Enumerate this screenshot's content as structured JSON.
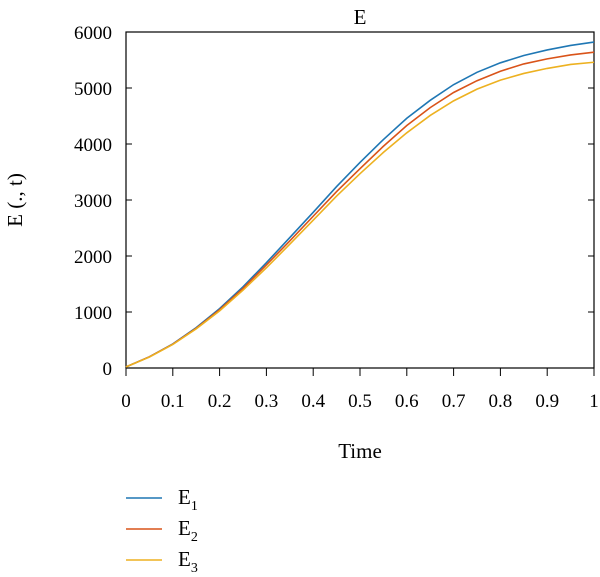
{
  "chart_data": {
    "type": "line",
    "title": "E",
    "xlabel": "Time",
    "ylabel": "E (., t)",
    "xlim": [
      0,
      1
    ],
    "ylim": [
      0,
      6000
    ],
    "x_ticks": [
      "0",
      "0.1",
      "0.2",
      "0.3",
      "0.4",
      "0.5",
      "0.6",
      "0.7",
      "0.8",
      "0.9",
      "1"
    ],
    "y_ticks": [
      "0",
      "1000",
      "2000",
      "3000",
      "4000",
      "5000",
      "6000"
    ],
    "grid": false,
    "legend_position": "bottom-left",
    "x": [
      0,
      0.05,
      0.1,
      0.15,
      0.2,
      0.25,
      0.3,
      0.35,
      0.4,
      0.45,
      0.5,
      0.55,
      0.6,
      0.65,
      0.7,
      0.75,
      0.8,
      0.85,
      0.9,
      0.95,
      1.0
    ],
    "series": [
      {
        "name": "E",
        "subscript": "1",
        "color": "#1f77b4",
        "values": [
          20,
          200,
          430,
          720,
          1060,
          1450,
          1880,
          2330,
          2780,
          3240,
          3670,
          4080,
          4460,
          4780,
          5060,
          5280,
          5450,
          5580,
          5680,
          5760,
          5820
        ]
      },
      {
        "name": "E",
        "subscript": "2",
        "color": "#d95319",
        "values": [
          20,
          200,
          425,
          710,
          1040,
          1420,
          1840,
          2270,
          2710,
          3150,
          3560,
          3960,
          4330,
          4650,
          4920,
          5130,
          5300,
          5430,
          5520,
          5590,
          5640
        ]
      },
      {
        "name": "E",
        "subscript": "3",
        "color": "#edb120",
        "values": [
          20,
          195,
          420,
          700,
          1020,
          1390,
          1790,
          2210,
          2640,
          3070,
          3470,
          3850,
          4200,
          4510,
          4770,
          4980,
          5140,
          5260,
          5350,
          5420,
          5460
        ]
      }
    ]
  }
}
